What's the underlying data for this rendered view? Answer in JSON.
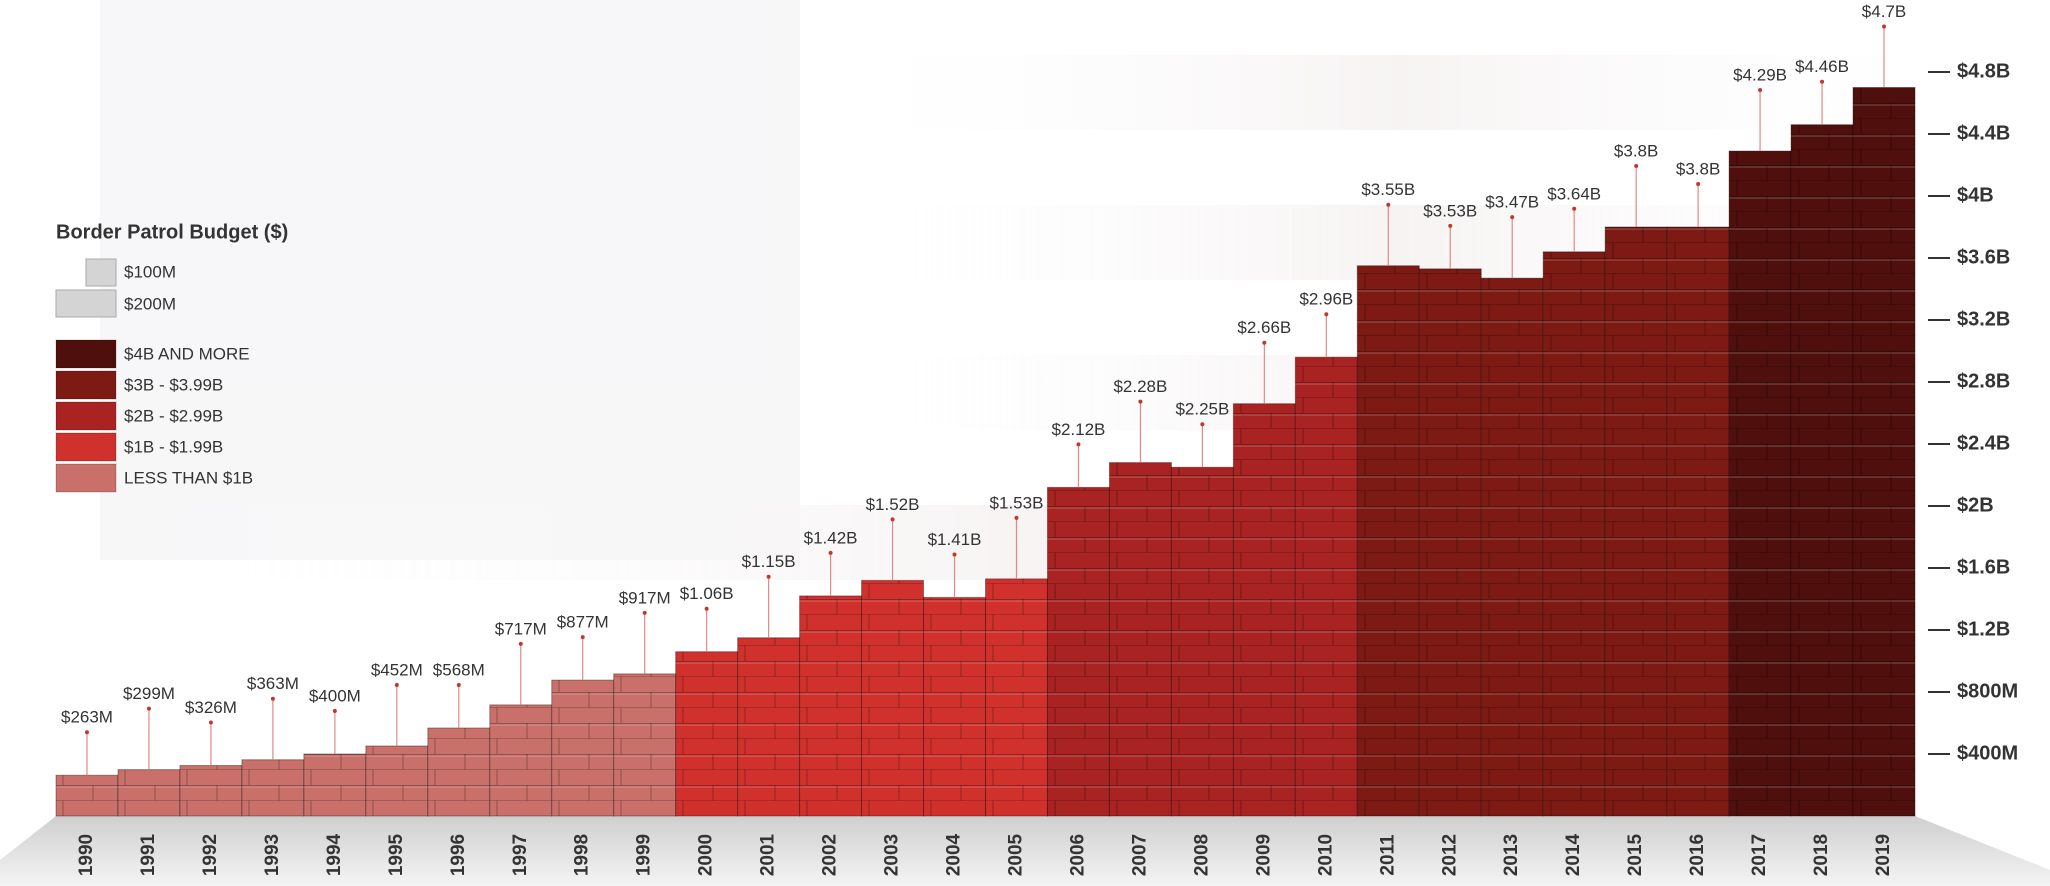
{
  "chart_data": {
    "type": "bar",
    "legend": {
      "title": "Border Patrol Budget ($)",
      "units": [
        "$100M",
        "$200M"
      ],
      "tiers": [
        {
          "label": "$4B AND MORE",
          "color": "#4f0f0c"
        },
        {
          "label": "$3B - $3.99B",
          "color": "#7e1a14"
        },
        {
          "label": "$2B - $2.99B",
          "color": "#a82322"
        },
        {
          "label": "$1B - $1.99B",
          "color": "#d0312d"
        },
        {
          "label": "LESS THAN $1B",
          "color": "#c9706a"
        }
      ]
    },
    "categories": [
      "1990",
      "1991",
      "1992",
      "1993",
      "1994",
      "1995",
      "1996",
      "1997",
      "1998",
      "1999",
      "2000",
      "2001",
      "2002",
      "2003",
      "2004",
      "2005",
      "2006",
      "2007",
      "2008",
      "2009",
      "2010",
      "2011",
      "2012",
      "2013",
      "2014",
      "2015",
      "2016",
      "2017",
      "2018",
      "2019"
    ],
    "values": [
      263000000,
      299000000,
      326000000,
      363000000,
      400000000,
      452000000,
      568000000,
      717000000,
      877000000,
      917000000,
      1060000000,
      1150000000,
      1420000000,
      1520000000,
      1410000000,
      1530000000,
      2120000000,
      2280000000,
      2250000000,
      2660000000,
      2960000000,
      3550000000,
      3530000000,
      3470000000,
      3640000000,
      3800000000,
      3800000000,
      4290000000,
      4460000000,
      4700000000
    ],
    "value_labels": [
      "$263M",
      "$299M",
      "$326M",
      "$363M",
      "$400M",
      "$452M",
      "$568M",
      "$717M",
      "$877M",
      "$917M",
      "$1.06B",
      "$1.15B",
      "$1.42B",
      "$1.52B",
      "$1.41B",
      "$1.53B",
      "$2.12B",
      "$2.28B",
      "$2.25B",
      "$2.66B",
      "$2.96B",
      "$3.55B",
      "$3.53B",
      "$3.47B",
      "$3.64B",
      "$3.8B",
      "$3.8B",
      "$4.29B",
      "$4.46B",
      "$4.7B"
    ],
    "colors": [
      "#c9706a",
      "#c9706a",
      "#c9706a",
      "#c9706a",
      "#c9706a",
      "#c9706a",
      "#c9706a",
      "#c9706a",
      "#c9706a",
      "#c9706a",
      "#d0312d",
      "#d0312d",
      "#d0312d",
      "#d0312d",
      "#d0312d",
      "#d0312d",
      "#a82322",
      "#a82322",
      "#a82322",
      "#a82322",
      "#a82322",
      "#7e1a14",
      "#7e1a14",
      "#7e1a14",
      "#7e1a14",
      "#7e1a14",
      "#7e1a14",
      "#4f0f0c",
      "#4f0f0c",
      "#4f0f0c"
    ],
    "ylim": [
      0,
      4800000000
    ],
    "yticks": [
      {
        "value": 400000000,
        "label": "$400M"
      },
      {
        "value": 800000000,
        "label": "$800M"
      },
      {
        "value": 1200000000,
        "label": "$1.2B"
      },
      {
        "value": 1600000000,
        "label": "$1.6B"
      },
      {
        "value": 2000000000,
        "label": "$2B"
      },
      {
        "value": 2400000000,
        "label": "$2.4B"
      },
      {
        "value": 2800000000,
        "label": "$2.8B"
      },
      {
        "value": 3200000000,
        "label": "$3.2B"
      },
      {
        "value": 3600000000,
        "label": "$3.6B"
      },
      {
        "value": 4000000000,
        "label": "$4B"
      },
      {
        "value": 4400000000,
        "label": "$4.4B"
      },
      {
        "value": 4800000000,
        "label": "$4.8B"
      }
    ]
  }
}
